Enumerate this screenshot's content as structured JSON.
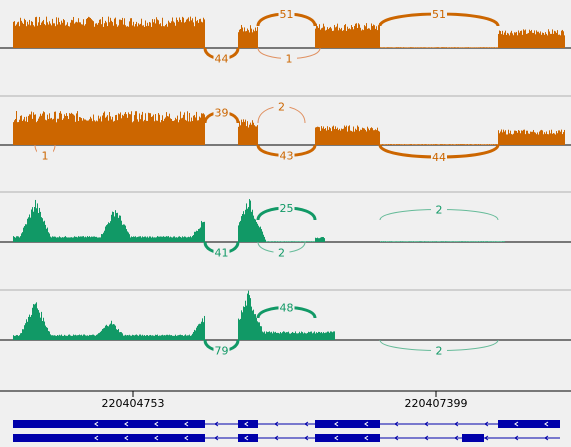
{
  "colors": {
    "orange": "#cc6600",
    "orange_light": "#e09060",
    "green": "#119966",
    "green_light": "#66bb99",
    "gene": "#0000aa",
    "divider": "#b0b0b0",
    "baseline": "#000000",
    "background": "#f0f0f0"
  },
  "axis": {
    "coordinates": [
      "220404753",
      "220407399"
    ]
  },
  "tracks": [
    {
      "name": "track-1",
      "color": "orange",
      "junctions": [
        {
          "label": "51",
          "above": true,
          "weight": 3
        },
        {
          "label": "51",
          "above": true,
          "weight": 3
        },
        {
          "label": "44",
          "above": false,
          "weight": 3
        },
        {
          "label": "1",
          "above": false,
          "weight": 1
        }
      ]
    },
    {
      "name": "track-2",
      "color": "orange",
      "junctions": [
        {
          "label": "39",
          "above": true,
          "weight": 3
        },
        {
          "label": "2",
          "above": true,
          "weight": 1
        },
        {
          "label": "43",
          "above": false,
          "weight": 3
        },
        {
          "label": "44",
          "above": false,
          "weight": 3
        },
        {
          "label": "1",
          "above": false,
          "weight": 1
        }
      ]
    },
    {
      "name": "track-3",
      "color": "green",
      "junctions": [
        {
          "label": "25",
          "above": true,
          "weight": 3
        },
        {
          "label": "2",
          "above": true,
          "weight": 1
        },
        {
          "label": "41",
          "above": false,
          "weight": 3
        },
        {
          "label": "2",
          "above": false,
          "weight": 1
        }
      ]
    },
    {
      "name": "track-4",
      "color": "green",
      "junctions": [
        {
          "label": "48",
          "above": true,
          "weight": 3
        },
        {
          "label": "79",
          "above": false,
          "weight": 3
        },
        {
          "label": "2",
          "above": false,
          "weight": 1
        }
      ]
    }
  ]
}
